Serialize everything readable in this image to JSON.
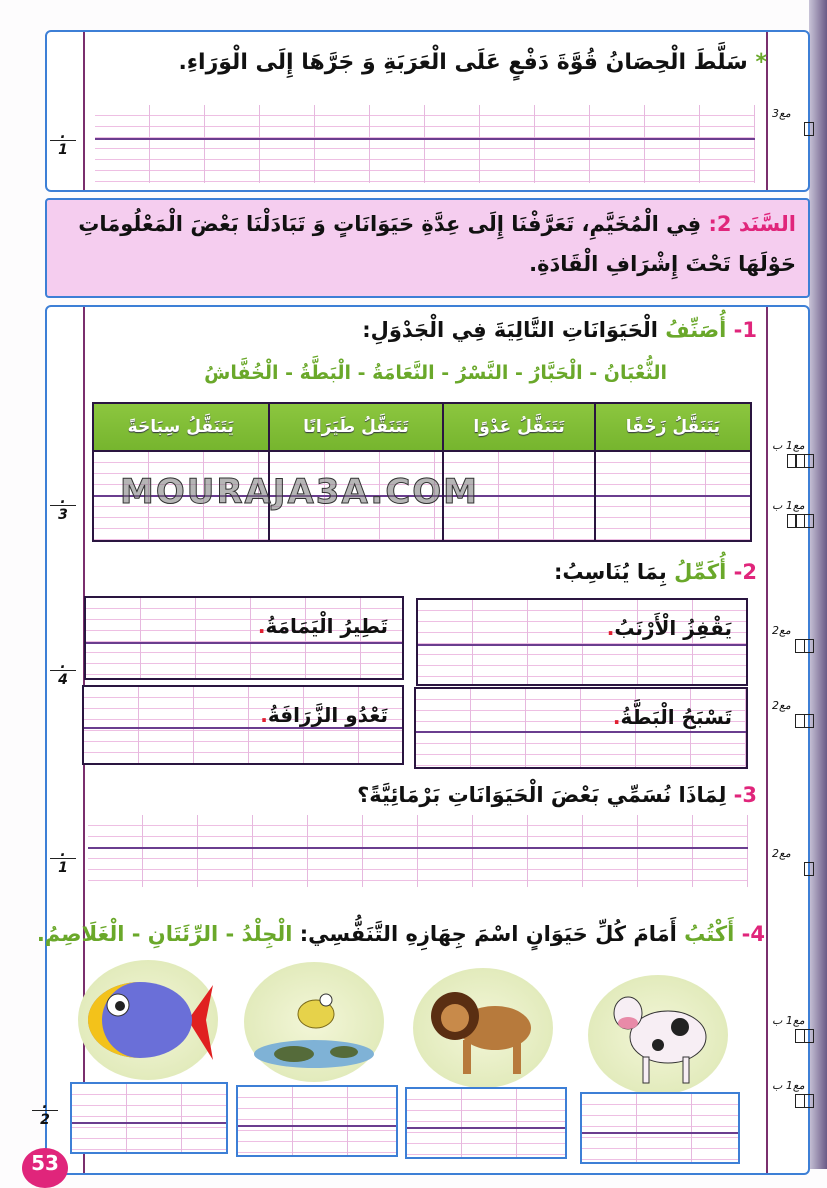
{
  "top_section": {
    "bullet": "*",
    "sentence": "سَلَّطَ الْحِصَانُ قُوَّةَ دَفْعٍ عَلَى الْعَرَبَةِ وَ جَرَّهَا إِلَى الْوَرَاءِ.",
    "score": "مع3",
    "fraction": "1"
  },
  "document2": {
    "label": "السَّنَد 2:",
    "text": "فِي الْمُخَيَّمِ، تَعَرَّفْنَا إِلَى عِدَّةِ حَيَوَانَاتٍ وَ تَبَادَلْنَا بَعْضَ الْمَعْلُومَاتِ حَوْلَهَا تَحْتَ إِشْرَافِ الْقَادَةِ."
  },
  "q1": {
    "number": "1-",
    "verb": "أُصَنِّفُ",
    "rest": "الْحَيَوَانَاتِ التَّالِيَةَ فِي الْجَدْوَلِ:",
    "word_list": "الثُّعْبَانُ - الْحَبَّارُ - النَّسْرُ - النَّعَامَةُ - الْبَطَّةُ - الْخُفَّاشُ",
    "headers": [
      "يَتَنَقَّلُ زَحْفًا",
      "تَتَنَقَّلُ عَدْوًا",
      "تَتَنَقَّلُ طَيَرَانًا",
      "يَتَنَقَّلُ سِبَاحَةً"
    ],
    "scores": [
      "مع1 ب",
      "مع1 ب"
    ],
    "fraction": "3"
  },
  "q2": {
    "number": "2-",
    "verb": "أُكَمِّلُ",
    "rest": "بِمَا يُنَاسِبُ:",
    "items": [
      "يَقْفِزُ الْأَرْنَبُ",
      "تَطِيرُ الْيَمَامَةُ",
      "تَسْبَحُ الْبَطَّةُ",
      "تَعْدُو الزَّرَافَةُ"
    ],
    "dot": ".",
    "scores": [
      "مع2",
      "مع2"
    ],
    "fraction": "4"
  },
  "q3": {
    "number": "3-",
    "text": "لِمَاذَا نُسَمِّي بَعْضَ الْحَيَوَانَاتِ بَرْمَائِيَّةً؟",
    "score": "مع2",
    "fraction": "1"
  },
  "q4": {
    "number": "4-",
    "verb": "أَكْتُبُ",
    "rest": "أَمَامَ كُلِّ حَيَوَانٍ اسْمَ جِهَازِهِ التَّنَفُّسِي:",
    "options": "الْجِلْدُ - الرِّئَتَانِ - الْغَلَاصِمُ.",
    "animals": [
      "cow",
      "lion",
      "frog",
      "fish"
    ],
    "scores": [
      "مع1 ب",
      "مع1 ب"
    ],
    "fraction": "2"
  },
  "watermark": "MOURAJA3A.COM",
  "page_number": "53",
  "colors": {
    "frame": "#3d7fd6",
    "accent_pink": "#e0257b",
    "green": "#76b52e",
    "pink_bg": "#f5cdef"
  }
}
